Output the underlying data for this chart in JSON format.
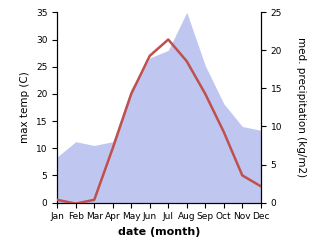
{
  "months": [
    "Jan",
    "Feb",
    "Mar",
    "Apr",
    "May",
    "Jun",
    "Jul",
    "Aug",
    "Sep",
    "Oct",
    "Nov",
    "Dec"
  ],
  "temperature": [
    0.5,
    -0.2,
    0.5,
    10,
    20,
    27,
    30,
    26,
    20,
    13,
    5,
    3
  ],
  "precipitation": [
    6,
    8,
    7.5,
    8,
    15,
    19,
    20,
    25,
    18,
    13,
    10,
    9.5
  ],
  "temp_color": "#c0504d",
  "precip_fill_color": "#bfc7f0",
  "temp_ylim": [
    0,
    35
  ],
  "precip_ylim": [
    0,
    25
  ],
  "temp_yticks": [
    0,
    5,
    10,
    15,
    20,
    25,
    30,
    35
  ],
  "precip_yticks": [
    0,
    5,
    10,
    15,
    20,
    25
  ],
  "xlabel": "date (month)",
  "ylabel_left": "max temp (C)",
  "ylabel_right": "med. precipitation (kg/m2)",
  "background_color": "#ffffff",
  "line_width": 1.8,
  "tick_fontsize": 6.5,
  "label_fontsize": 7.5,
  "xlabel_fontsize": 8
}
